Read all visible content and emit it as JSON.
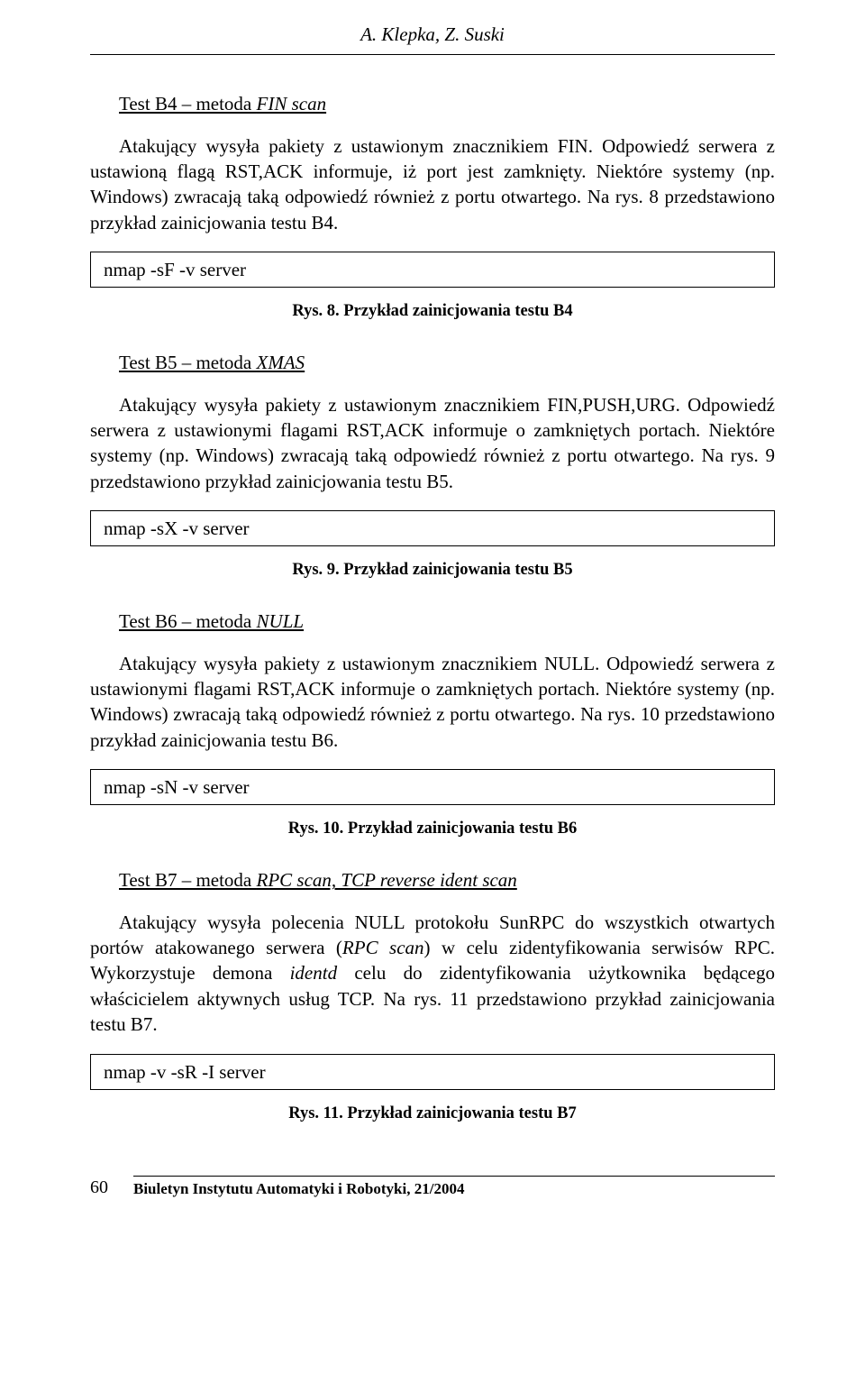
{
  "header": {
    "authors": "A. Klepka, Z. Suski"
  },
  "sections": [
    {
      "title_prefix": "Test B4 – metoda ",
      "title_italic": "FIN scan",
      "para": "Atakujący wysyła pakiety z ustawionym znacznikiem FIN. Odpowiedź serwera z ustawioną flagą RST,ACK  informuje, iż port jest zamknięty. Niektóre systemy (np. Windows) zwracają taką odpowiedź również z portu otwartego. Na rys. 8 przedstawiono przykład zainicjowania testu B4.",
      "code": "nmap -sF -v server",
      "caption": "Rys. 8. Przykład zainicjowania testu B4"
    },
    {
      "title_prefix": "Test B5 – metoda ",
      "title_italic": "XMAS",
      "para": "Atakujący wysyła pakiety z ustawionym znacznikiem FIN,PUSH,URG. Odpowiedź serwera z ustawionymi flagami RST,ACK informuje o zamkniętych portach. Niektóre systemy (np. Windows) zwracają taką odpowiedź również z portu otwartego. Na rys. 9 przedstawiono przykład zainicjowania testu B5.",
      "code": "nmap -sX -v server",
      "caption": "Rys. 9. Przykład zainicjowania testu B5"
    },
    {
      "title_prefix": "Test B6 – metoda ",
      "title_italic": "NULL",
      "para": "Atakujący wysyła pakiety z ustawionym znacznikiem NULL. Odpowiedź serwera z ustawionymi flagami RST,ACK informuje o zamkniętych portach. Niektóre systemy (np. Windows) zwracają taką odpowiedź również z portu otwartego. Na rys. 10 przedstawiono przykład zainicjowania testu B6.",
      "code": "nmap -sN -v server",
      "caption": "Rys. 10. Przykład zainicjowania testu B6"
    },
    {
      "title_prefix": "Test B7 – metoda ",
      "title_italic": "RPC scan, TCP reverse ident scan",
      "para_html": "Atakujący wysyła polecenia NULL protokołu SunRPC do wszystkich otwartych portów atakowanego serwera (<span class=\"italic\">RPC scan</span>) w celu zidentyfikowania serwisów RPC. Wykorzystuje demona <span class=\"italic\">identd</span> celu do zidentyfikowania użytkownika będącego właścicielem aktywnych usług TCP. Na rys. 11 przedstawiono przykład zainicjowania testu B7.",
      "code": "nmap -v -sR -I server",
      "caption": "Rys. 11. Przykład zainicjowania testu B7"
    }
  ],
  "footer": {
    "page": "60",
    "journal": "Biuletyn Instytutu Automatyki i Robotyki, 21/2004"
  }
}
